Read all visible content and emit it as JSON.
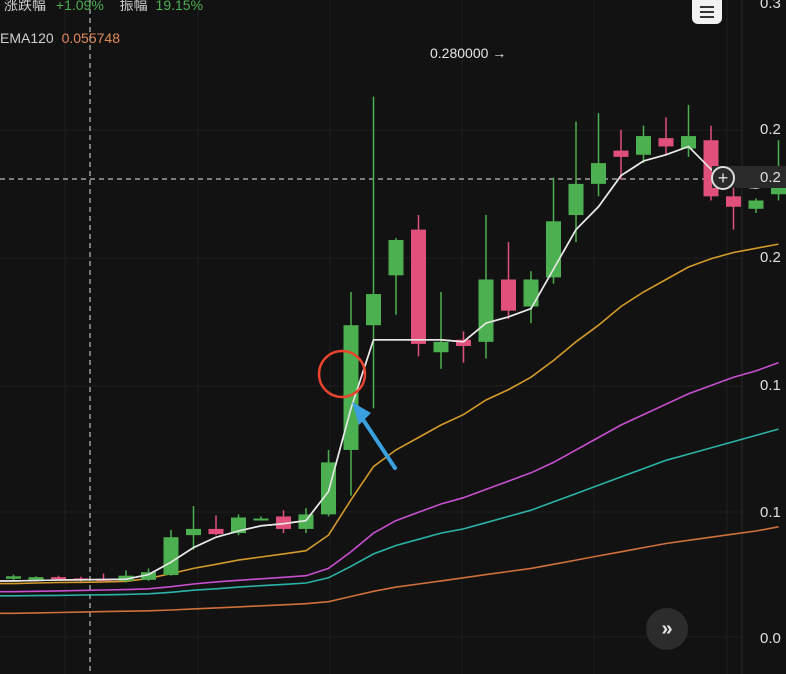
{
  "header": {
    "change_label": "涨跌幅",
    "change_value": "+1.09%",
    "amplitude_label": "振幅",
    "amplitude_value": "19.15%",
    "ema_label": "EMA120",
    "ema_value": "0.055748"
  },
  "colors": {
    "background": "#121212",
    "up": "#4caf50",
    "down": "#e0507a",
    "ma_white": "#e8e8e8",
    "ma_orange": "#d49a2a",
    "ma_magenta": "#c84fd0",
    "ma_teal": "#2bb3a8",
    "ma_brown": "#d0703c",
    "annotation_circle": "#e8432e",
    "annotation_arrow": "#3aa0e0"
  },
  "chart_data": {
    "type": "candlestick",
    "high_marker_label": "0.280000 →",
    "y_tick_labels": [
      "0.3",
      "0.2",
      "0.2",
      "0.2",
      "0.1",
      "0.1",
      "0.0"
    ],
    "crosshair_price_label": "0.2",
    "ylim": [
      0.02,
      0.3
    ],
    "candles": [
      {
        "o": 0.048,
        "h": 0.05,
        "l": 0.047,
        "c": 0.0492
      },
      {
        "o": 0.0476,
        "h": 0.0492,
        "l": 0.0468,
        "c": 0.0488
      },
      {
        "o": 0.0488,
        "h": 0.0495,
        "l": 0.047,
        "c": 0.0478
      },
      {
        "o": 0.0482,
        "h": 0.049,
        "l": 0.0468,
        "c": 0.0474
      },
      {
        "o": 0.048,
        "h": 0.0505,
        "l": 0.0465,
        "c": 0.047
      },
      {
        "o": 0.047,
        "h": 0.052,
        "l": 0.0462,
        "c": 0.0495
      },
      {
        "o": 0.0475,
        "h": 0.053,
        "l": 0.047,
        "c": 0.0512
      },
      {
        "o": 0.0498,
        "h": 0.0715,
        "l": 0.0495,
        "c": 0.068
      },
      {
        "o": 0.069,
        "h": 0.083,
        "l": 0.062,
        "c": 0.072
      },
      {
        "o": 0.072,
        "h": 0.0785,
        "l": 0.069,
        "c": 0.0695
      },
      {
        "o": 0.07,
        "h": 0.079,
        "l": 0.069,
        "c": 0.0775
      },
      {
        "o": 0.077,
        "h": 0.078,
        "l": 0.076,
        "c": 0.077
      },
      {
        "o": 0.078,
        "h": 0.081,
        "l": 0.07,
        "c": 0.072
      },
      {
        "o": 0.072,
        "h": 0.082,
        "l": 0.07,
        "c": 0.079
      },
      {
        "o": 0.079,
        "h": 0.11,
        "l": 0.078,
        "c": 0.104
      },
      {
        "o": 0.11,
        "h": 0.186,
        "l": 0.088,
        "c": 0.17
      },
      {
        "o": 0.17,
        "h": 0.28,
        "l": 0.13,
        "c": 0.185
      },
      {
        "o": 0.194,
        "h": 0.212,
        "l": 0.175,
        "c": 0.211
      },
      {
        "o": 0.216,
        "h": 0.223,
        "l": 0.155,
        "c": 0.161
      },
      {
        "o": 0.157,
        "h": 0.186,
        "l": 0.149,
        "c": 0.162
      },
      {
        "o": 0.163,
        "h": 0.167,
        "l": 0.152,
        "c": 0.16
      },
      {
        "o": 0.162,
        "h": 0.223,
        "l": 0.154,
        "c": 0.192
      },
      {
        "o": 0.192,
        "h": 0.21,
        "l": 0.173,
        "c": 0.177
      },
      {
        "o": 0.179,
        "h": 0.196,
        "l": 0.171,
        "c": 0.192
      },
      {
        "o": 0.193,
        "h": 0.241,
        "l": 0.19,
        "c": 0.22
      },
      {
        "o": 0.223,
        "h": 0.268,
        "l": 0.21,
        "c": 0.238
      },
      {
        "o": 0.238,
        "h": 0.272,
        "l": 0.232,
        "c": 0.248
      },
      {
        "o": 0.254,
        "h": 0.264,
        "l": 0.24,
        "c": 0.251
      },
      {
        "o": 0.252,
        "h": 0.266,
        "l": 0.248,
        "c": 0.261
      },
      {
        "o": 0.26,
        "h": 0.27,
        "l": 0.252,
        "c": 0.256
      },
      {
        "o": 0.255,
        "h": 0.276,
        "l": 0.251,
        "c": 0.261
      },
      {
        "o": 0.259,
        "h": 0.266,
        "l": 0.23,
        "c": 0.232
      },
      {
        "o": 0.232,
        "h": 0.246,
        "l": 0.216,
        "c": 0.227
      },
      {
        "o": 0.226,
        "h": 0.231,
        "l": 0.224,
        "c": 0.23
      },
      {
        "o": 0.233,
        "h": 0.259,
        "l": 0.23,
        "c": 0.241
      }
    ],
    "ma_series": [
      {
        "key": "ma_white",
        "values": [
          0.047,
          0.0472,
          0.0474,
          0.0475,
          0.0476,
          0.0478,
          0.05,
          0.056,
          0.063,
          0.068,
          0.071,
          0.0735,
          0.0745,
          0.076,
          0.09,
          0.13,
          0.163,
          0.163,
          0.163,
          0.163,
          0.162,
          0.171,
          0.174,
          0.178,
          0.197,
          0.216,
          0.227,
          0.242,
          0.249,
          0.252,
          0.256,
          0.245,
          0.237,
          0.236,
          0.238
        ]
      },
      {
        "key": "ma_orange",
        "values": [
          0.0457,
          0.046,
          0.0462,
          0.0463,
          0.0465,
          0.0468,
          0.0482,
          0.0505,
          0.053,
          0.055,
          0.057,
          0.0585,
          0.06,
          0.0615,
          0.069,
          0.086,
          0.102,
          0.11,
          0.116,
          0.122,
          0.127,
          0.134,
          0.139,
          0.145,
          0.153,
          0.162,
          0.17,
          0.179,
          0.186,
          0.192,
          0.198,
          0.202,
          0.205,
          0.207,
          0.209
        ]
      },
      {
        "key": "ma_magenta",
        "values": [
          0.0418,
          0.042,
          0.0422,
          0.0424,
          0.0426,
          0.0428,
          0.0432,
          0.0442,
          0.0455,
          0.0465,
          0.0473,
          0.048,
          0.0487,
          0.0495,
          0.053,
          0.061,
          0.07,
          0.076,
          0.08,
          0.084,
          0.087,
          0.091,
          0.095,
          0.099,
          0.104,
          0.11,
          0.116,
          0.122,
          0.127,
          0.132,
          0.137,
          0.141,
          0.145,
          0.148,
          0.152
        ]
      },
      {
        "key": "ma_teal",
        "values": [
          0.0398,
          0.0399,
          0.04,
          0.0402,
          0.0403,
          0.0405,
          0.0408,
          0.0415,
          0.0425,
          0.0432,
          0.044,
          0.0447,
          0.0453,
          0.046,
          0.0485,
          0.054,
          0.06,
          0.064,
          0.067,
          0.07,
          0.072,
          0.075,
          0.078,
          0.081,
          0.085,
          0.089,
          0.093,
          0.097,
          0.101,
          0.105,
          0.108,
          0.111,
          0.114,
          0.117,
          0.12
        ]
      },
      {
        "key": "ma_brown",
        "values": [
          0.0314,
          0.0316,
          0.0318,
          0.032,
          0.0322,
          0.0324,
          0.0326,
          0.033,
          0.0335,
          0.034,
          0.0345,
          0.035,
          0.0355,
          0.036,
          0.037,
          0.0395,
          0.042,
          0.044,
          0.0455,
          0.047,
          0.0485,
          0.05,
          0.0515,
          0.053,
          0.055,
          0.057,
          0.059,
          0.061,
          0.063,
          0.065,
          0.0665,
          0.068,
          0.0695,
          0.071,
          0.073
        ]
      }
    ]
  }
}
